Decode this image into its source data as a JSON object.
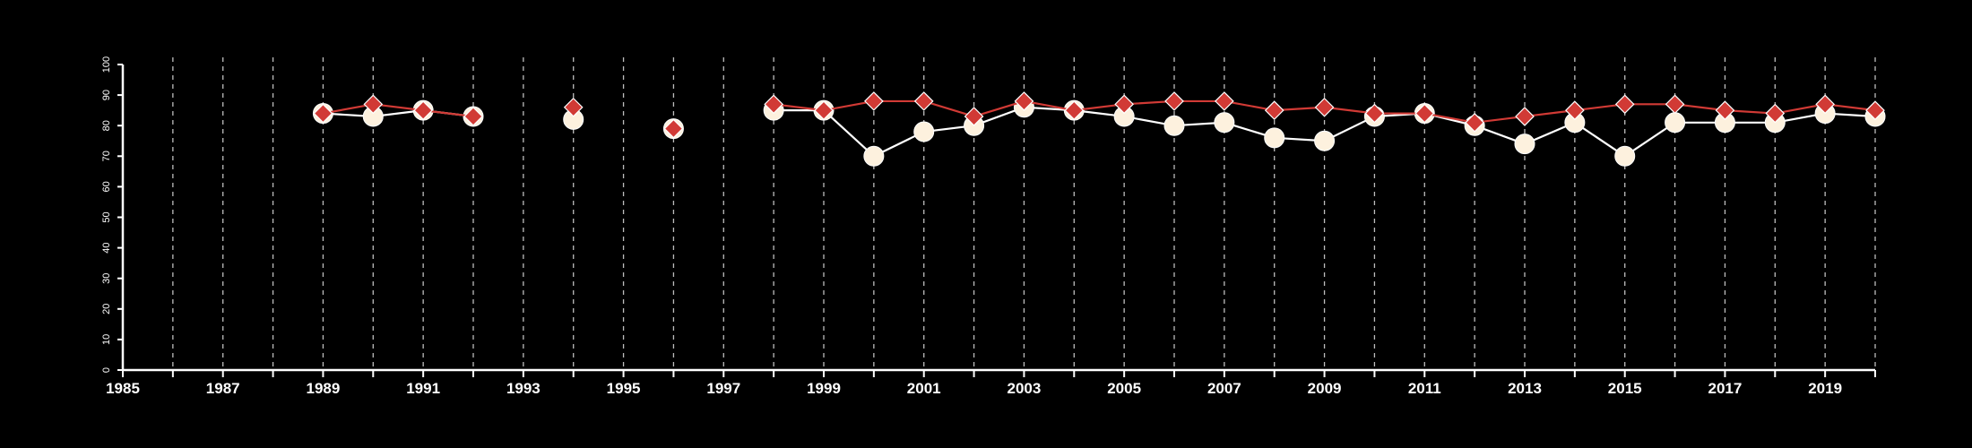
{
  "chart_data": {
    "type": "line",
    "background": "#000000",
    "axis_color": "#ffffff",
    "grid": "vertical dashed",
    "xlim": [
      1985,
      2020
    ],
    "ylim": [
      0,
      100
    ],
    "xticks": [
      1985,
      1986,
      1987,
      1988,
      1989,
      1990,
      1991,
      1992,
      1993,
      1994,
      1995,
      1996,
      1997,
      1998,
      1999,
      2000,
      2001,
      2002,
      2003,
      2004,
      2005,
      2006,
      2007,
      2008,
      2009,
      2010,
      2011,
      2012,
      2013,
      2014,
      2015,
      2016,
      2017,
      2018,
      2019,
      2020
    ],
    "xtick_labels": [
      {
        "x": 1985,
        "label": "1985"
      },
      {
        "x": 1987,
        "label": "1987"
      },
      {
        "x": 1989,
        "label": "1989"
      },
      {
        "x": 1991,
        "label": "1991"
      },
      {
        "x": 1993,
        "label": "1993"
      },
      {
        "x": 1995,
        "label": "1995"
      },
      {
        "x": 1997,
        "label": "1997"
      },
      {
        "x": 1999,
        "label": "1999"
      },
      {
        "x": 2001,
        "label": "2001"
      },
      {
        "x": 2003,
        "label": "2003"
      },
      {
        "x": 2005,
        "label": "2005"
      },
      {
        "x": 2007,
        "label": "2007"
      },
      {
        "x": 2009,
        "label": "2009"
      },
      {
        "x": 2011,
        "label": "2011"
      },
      {
        "x": 2013,
        "label": "2013"
      },
      {
        "x": 2015,
        "label": "2015"
      },
      {
        "x": 2017,
        "label": "2017"
      },
      {
        "x": 2019,
        "label": "2019"
      }
    ],
    "yticks": [
      {
        "y": 0,
        "label": "0"
      },
      {
        "y": 10,
        "label": "10"
      },
      {
        "y": 20,
        "label": "20"
      },
      {
        "y": 30,
        "label": "30"
      },
      {
        "y": 40,
        "label": "40"
      },
      {
        "y": 50,
        "label": "50"
      },
      {
        "y": 60,
        "label": "60"
      },
      {
        "y": 70,
        "label": "70"
      },
      {
        "y": 80,
        "label": "80"
      },
      {
        "y": 90,
        "label": "90"
      },
      {
        "y": 100,
        "label": "100"
      }
    ],
    "series": [
      {
        "marker": "circle",
        "color": "#fdf1de",
        "line_color": "#ffffff",
        "x": [
          1989,
          1990,
          1991,
          1992,
          1994,
          1996,
          1998,
          1999,
          2000,
          2001,
          2002,
          2003,
          2004,
          2005,
          2006,
          2007,
          2008,
          2009,
          2010,
          2011,
          2012,
          2013,
          2014,
          2015,
          2016,
          2017,
          2018,
          2019,
          2020
        ],
        "y": [
          84,
          83,
          85,
          83,
          82,
          79,
          85,
          85,
          70,
          78,
          80,
          86,
          85,
          83,
          80,
          81,
          76,
          75,
          83,
          84,
          80,
          74,
          81,
          70,
          81,
          81,
          81,
          84,
          83
        ]
      },
      {
        "marker": "diamond",
        "color": "#d13a35",
        "line_color": "#d13a35",
        "x": [
          1989,
          1990,
          1991,
          1992,
          1994,
          1996,
          1998,
          1999,
          2000,
          2001,
          2002,
          2003,
          2004,
          2005,
          2006,
          2007,
          2008,
          2009,
          2010,
          2011,
          2012,
          2013,
          2014,
          2015,
          2016,
          2017,
          2018,
          2019,
          2020
        ],
        "y": [
          84,
          87,
          85,
          83,
          86,
          79,
          87,
          85,
          88,
          88,
          83,
          88,
          85,
          87,
          88,
          88,
          85,
          86,
          84,
          84,
          81,
          83,
          85,
          87,
          87,
          85,
          84,
          87,
          85
        ]
      }
    ]
  }
}
